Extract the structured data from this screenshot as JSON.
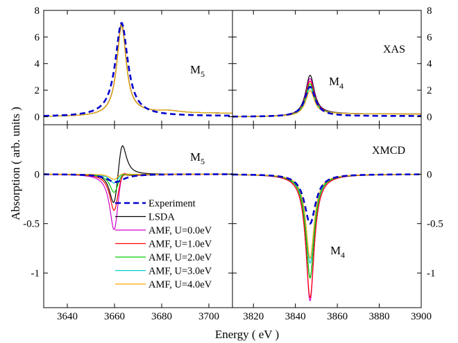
{
  "chart_data": {
    "type": "line",
    "xlabel": "Energy ( eV )",
    "ylabel": "Absorption ( arb. units )",
    "grid": false,
    "legend_placement": "lower-left of bottom-left panel",
    "series_legend": [
      {
        "name": "Experiment",
        "color": "#0000cc",
        "style": "dashed"
      },
      {
        "name": "LSDA",
        "color": "#000000",
        "style": "solid"
      },
      {
        "name": "AMF, U=0.0eV",
        "color": "#cc00cc",
        "style": "solid"
      },
      {
        "name": "AMF, U=1.0eV",
        "color": "#ff0000",
        "style": "solid"
      },
      {
        "name": "AMF, U=2.0eV",
        "color": "#00cc00",
        "style": "solid"
      },
      {
        "name": "AMF, U=3.0eV",
        "color": "#00cccc",
        "style": "solid"
      },
      {
        "name": "AMF, U=4.0eV",
        "color": "#ffa500",
        "style": "solid"
      }
    ],
    "panels": [
      {
        "id": "xas-m5",
        "edge_label": "M",
        "edge_sub": "5",
        "panel_tag": "",
        "xlim": [
          3630,
          3710
        ],
        "ylim": [
          -0.6,
          8
        ],
        "xticks": [
          3640,
          3660,
          3680,
          3700
        ],
        "yticks_left": [
          "0",
          "2",
          "4",
          "6",
          "8"
        ],
        "yticks_right": [],
        "peaks": [
          {
            "series": "Experiment",
            "center": 3663,
            "amp": 7.05,
            "width": 3.2,
            "style": "dashed",
            "color": "#0000cc",
            "baseline": 0.05
          },
          {
            "series": "LSDA",
            "center": 3663,
            "amp": 6.9,
            "width": 2.4,
            "color": "#000000",
            "baseline": 0.25
          },
          {
            "series": "AMF, U=0.0eV",
            "center": 3663,
            "amp": 7.0,
            "width": 2.4,
            "color": "#cc00cc",
            "baseline": 0.25
          },
          {
            "series": "AMF, U=1.0eV",
            "center": 3663,
            "amp": 6.95,
            "width": 2.4,
            "color": "#ff0000",
            "baseline": 0.25
          },
          {
            "series": "AMF, U=2.0eV",
            "center": 3663,
            "amp": 6.85,
            "width": 2.4,
            "color": "#00cc00",
            "baseline": 0.25
          },
          {
            "series": "AMF, U=3.0eV",
            "center": 3663,
            "amp": 6.8,
            "width": 2.4,
            "color": "#00cccc",
            "baseline": 0.25
          },
          {
            "series": "AMF, U=4.0eV",
            "center": 3663,
            "amp": 6.75,
            "width": 2.4,
            "color": "#ffa500",
            "baseline": 0.25
          }
        ]
      },
      {
        "id": "xas-m4",
        "edge_label": "M",
        "edge_sub": "4",
        "panel_tag": "XAS",
        "xlim": [
          3810,
          3900
        ],
        "ylim": [
          -0.6,
          8
        ],
        "xticks": [
          3820,
          3840,
          3860,
          3880,
          3900
        ],
        "yticks_left": [],
        "yticks_right": [
          "0",
          "2",
          "4",
          "6",
          "8"
        ],
        "peaks": [
          {
            "series": "Experiment",
            "center": 3847,
            "amp": 2.25,
            "width": 3.0,
            "style": "dashed",
            "color": "#0000cc",
            "baseline": 0.05
          },
          {
            "series": "LSDA",
            "center": 3847,
            "amp": 3.1,
            "width": 2.6,
            "color": "#000000",
            "baseline": 0.2
          },
          {
            "series": "AMF, U=0.0eV",
            "center": 3847,
            "amp": 2.85,
            "width": 2.6,
            "color": "#cc00cc",
            "baseline": 0.2
          },
          {
            "series": "AMF, U=1.0eV",
            "center": 3847,
            "amp": 2.65,
            "width": 2.6,
            "color": "#ff0000",
            "baseline": 0.2
          },
          {
            "series": "AMF, U=2.0eV",
            "center": 3847,
            "amp": 2.45,
            "width": 2.6,
            "color": "#00cc00",
            "baseline": 0.2
          },
          {
            "series": "AMF, U=3.0eV",
            "center": 3847,
            "amp": 2.2,
            "width": 2.6,
            "color": "#00cccc",
            "baseline": 0.2
          },
          {
            "series": "AMF, U=4.0eV",
            "center": 3847,
            "amp": 1.95,
            "width": 2.6,
            "color": "#ffa500",
            "baseline": 0.2
          }
        ]
      },
      {
        "id": "xmcd-m5",
        "edge_label": "M",
        "edge_sub": "5",
        "panel_tag": "",
        "xlim": [
          3630,
          3710
        ],
        "ylim": [
          -1.35,
          0.5
        ],
        "xticks": [
          3640,
          3660,
          3680,
          3700
        ],
        "yticks_left": [
          "0",
          "-0.5",
          "-1"
        ],
        "yticks_right": [],
        "derivs": [
          {
            "series": "Experiment",
            "center": 3662,
            "neg": -0.08,
            "pos": 0.0,
            "width": 4.5,
            "style": "dashed",
            "color": "#0000cc"
          },
          {
            "series": "LSDA",
            "center": 3661.5,
            "neg": -0.42,
            "pos": 0.42,
            "width": 2.3,
            "color": "#000000"
          },
          {
            "series": "AMF, U=0.0eV",
            "center": 3661.5,
            "neg": -0.62,
            "pos": 0.18,
            "width": 2.3,
            "color": "#cc00cc"
          },
          {
            "series": "AMF, U=1.0eV",
            "center": 3661.5,
            "neg": -0.4,
            "pos": 0.1,
            "width": 2.3,
            "color": "#ff0000"
          },
          {
            "series": "AMF, U=2.0eV",
            "center": 3661.5,
            "neg": -0.2,
            "pos": 0.05,
            "width": 2.3,
            "color": "#00cc00"
          },
          {
            "series": "AMF, U=3.0eV",
            "center": 3661.5,
            "neg": -0.1,
            "pos": 0.03,
            "width": 2.3,
            "color": "#00cccc"
          },
          {
            "series": "AMF, U=4.0eV",
            "center": 3661.5,
            "neg": -0.06,
            "pos": 0.02,
            "width": 2.3,
            "color": "#ffa500"
          }
        ]
      },
      {
        "id": "xmcd-m4",
        "edge_label": "M",
        "edge_sub": "4",
        "panel_tag": "XMCD",
        "xlim": [
          3810,
          3900
        ],
        "ylim": [
          -1.35,
          0.5
        ],
        "xticks": [
          3820,
          3840,
          3860,
          3880,
          3900
        ],
        "yticks_left": [],
        "yticks_right": [
          "0",
          "-0.5",
          "-1"
        ],
        "peaks": [
          {
            "series": "Experiment",
            "center": 3847,
            "amp": -0.5,
            "width": 3.2,
            "style": "dashed",
            "color": "#0000cc",
            "baseline": 0
          },
          {
            "series": "LSDA",
            "center": 3847,
            "amp": -1.05,
            "width": 2.4,
            "color": "#000000",
            "baseline": 0
          },
          {
            "series": "AMF, U=0.0eV",
            "center": 3847,
            "amp": -1.28,
            "width": 2.4,
            "color": "#cc00cc",
            "baseline": 0
          },
          {
            "series": "AMF, U=1.0eV",
            "center": 3847,
            "amp": -1.25,
            "width": 2.4,
            "color": "#ff0000",
            "baseline": 0
          },
          {
            "series": "AMF, U=2.0eV",
            "center": 3847,
            "amp": -1.05,
            "width": 2.4,
            "color": "#00cc00",
            "baseline": 0
          },
          {
            "series": "AMF, U=3.0eV",
            "center": 3847,
            "amp": -0.9,
            "width": 2.4,
            "color": "#00cccc",
            "baseline": 0
          },
          {
            "series": "AMF, U=4.0eV",
            "center": 3847,
            "amp": -0.85,
            "width": 2.4,
            "color": "#ffa500",
            "baseline": 0
          }
        ]
      }
    ]
  }
}
